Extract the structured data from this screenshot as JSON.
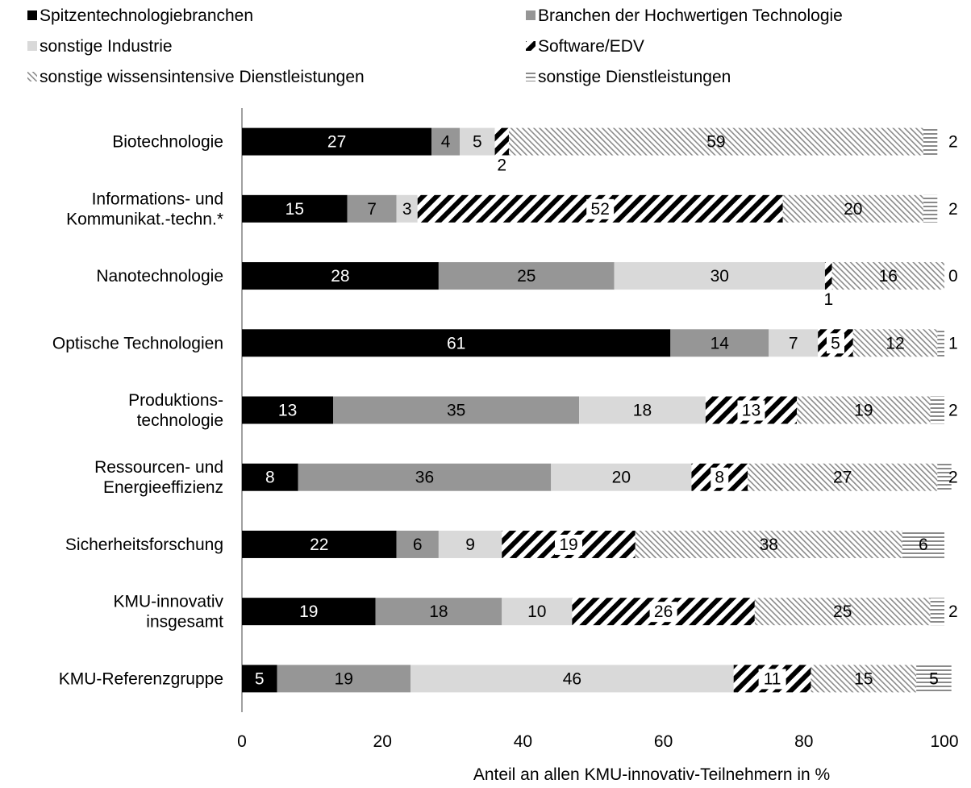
{
  "chart_data": {
    "type": "bar",
    "orientation": "horizontal",
    "stacked": true,
    "title": "",
    "xlabel": "Anteil an allen KMU-innovativ-Teilnehmern in %",
    "ylabel": "",
    "xlim": [
      0,
      100
    ],
    "xticks": [
      "0",
      "20",
      "40",
      "60",
      "80",
      "100"
    ],
    "grid": false,
    "legend_position": "top",
    "categories": [
      [
        "Biotechnologie"
      ],
      [
        "Informations- und",
        "Kommunikat.-techn.*"
      ],
      [
        "Nanotechnologie"
      ],
      [
        "Optische Technologien"
      ],
      [
        "Produktions-",
        "technologie"
      ],
      [
        "Ressourcen- und",
        "Energieeffizienz"
      ],
      [
        "Sicherheitsforschung"
      ],
      [
        "KMU-innovativ",
        "insgesamt"
      ],
      [
        "KMU-Referenzgruppe"
      ]
    ],
    "series": [
      {
        "name": "Spitzentechnologiebranchen",
        "pattern": "solid-black",
        "color": "#000000",
        "values": [
          27,
          15,
          28,
          61,
          13,
          8,
          22,
          19,
          5
        ]
      },
      {
        "name": "Branchen der Hochwertigen Technologie",
        "pattern": "solid-gray",
        "color": "#969696",
        "values": [
          4,
          7,
          25,
          14,
          35,
          36,
          6,
          18,
          19
        ]
      },
      {
        "name": "sonstige Industrie",
        "pattern": "solid-lightgray",
        "color": "#d9d9d9",
        "values": [
          5,
          3,
          30,
          7,
          18,
          20,
          9,
          10,
          46
        ]
      },
      {
        "name": "Software/EDV",
        "pattern": "wide-diagonal-black",
        "color": "#000000",
        "values": [
          2,
          52,
          1,
          5,
          13,
          8,
          19,
          26,
          11
        ]
      },
      {
        "name": "sonstige wissensintensive Dienstleistungen",
        "pattern": "fine-diagonal-gray",
        "color": "#7f7f7f",
        "values": [
          59,
          20,
          16,
          12,
          19,
          27,
          38,
          25,
          15
        ]
      },
      {
        "name": "sonstige Dienstleistungen",
        "pattern": "horizontal-stripes",
        "color": "#7f7f7f",
        "values": [
          2,
          2,
          0,
          1,
          2,
          2,
          6,
          2,
          5
        ]
      }
    ]
  }
}
